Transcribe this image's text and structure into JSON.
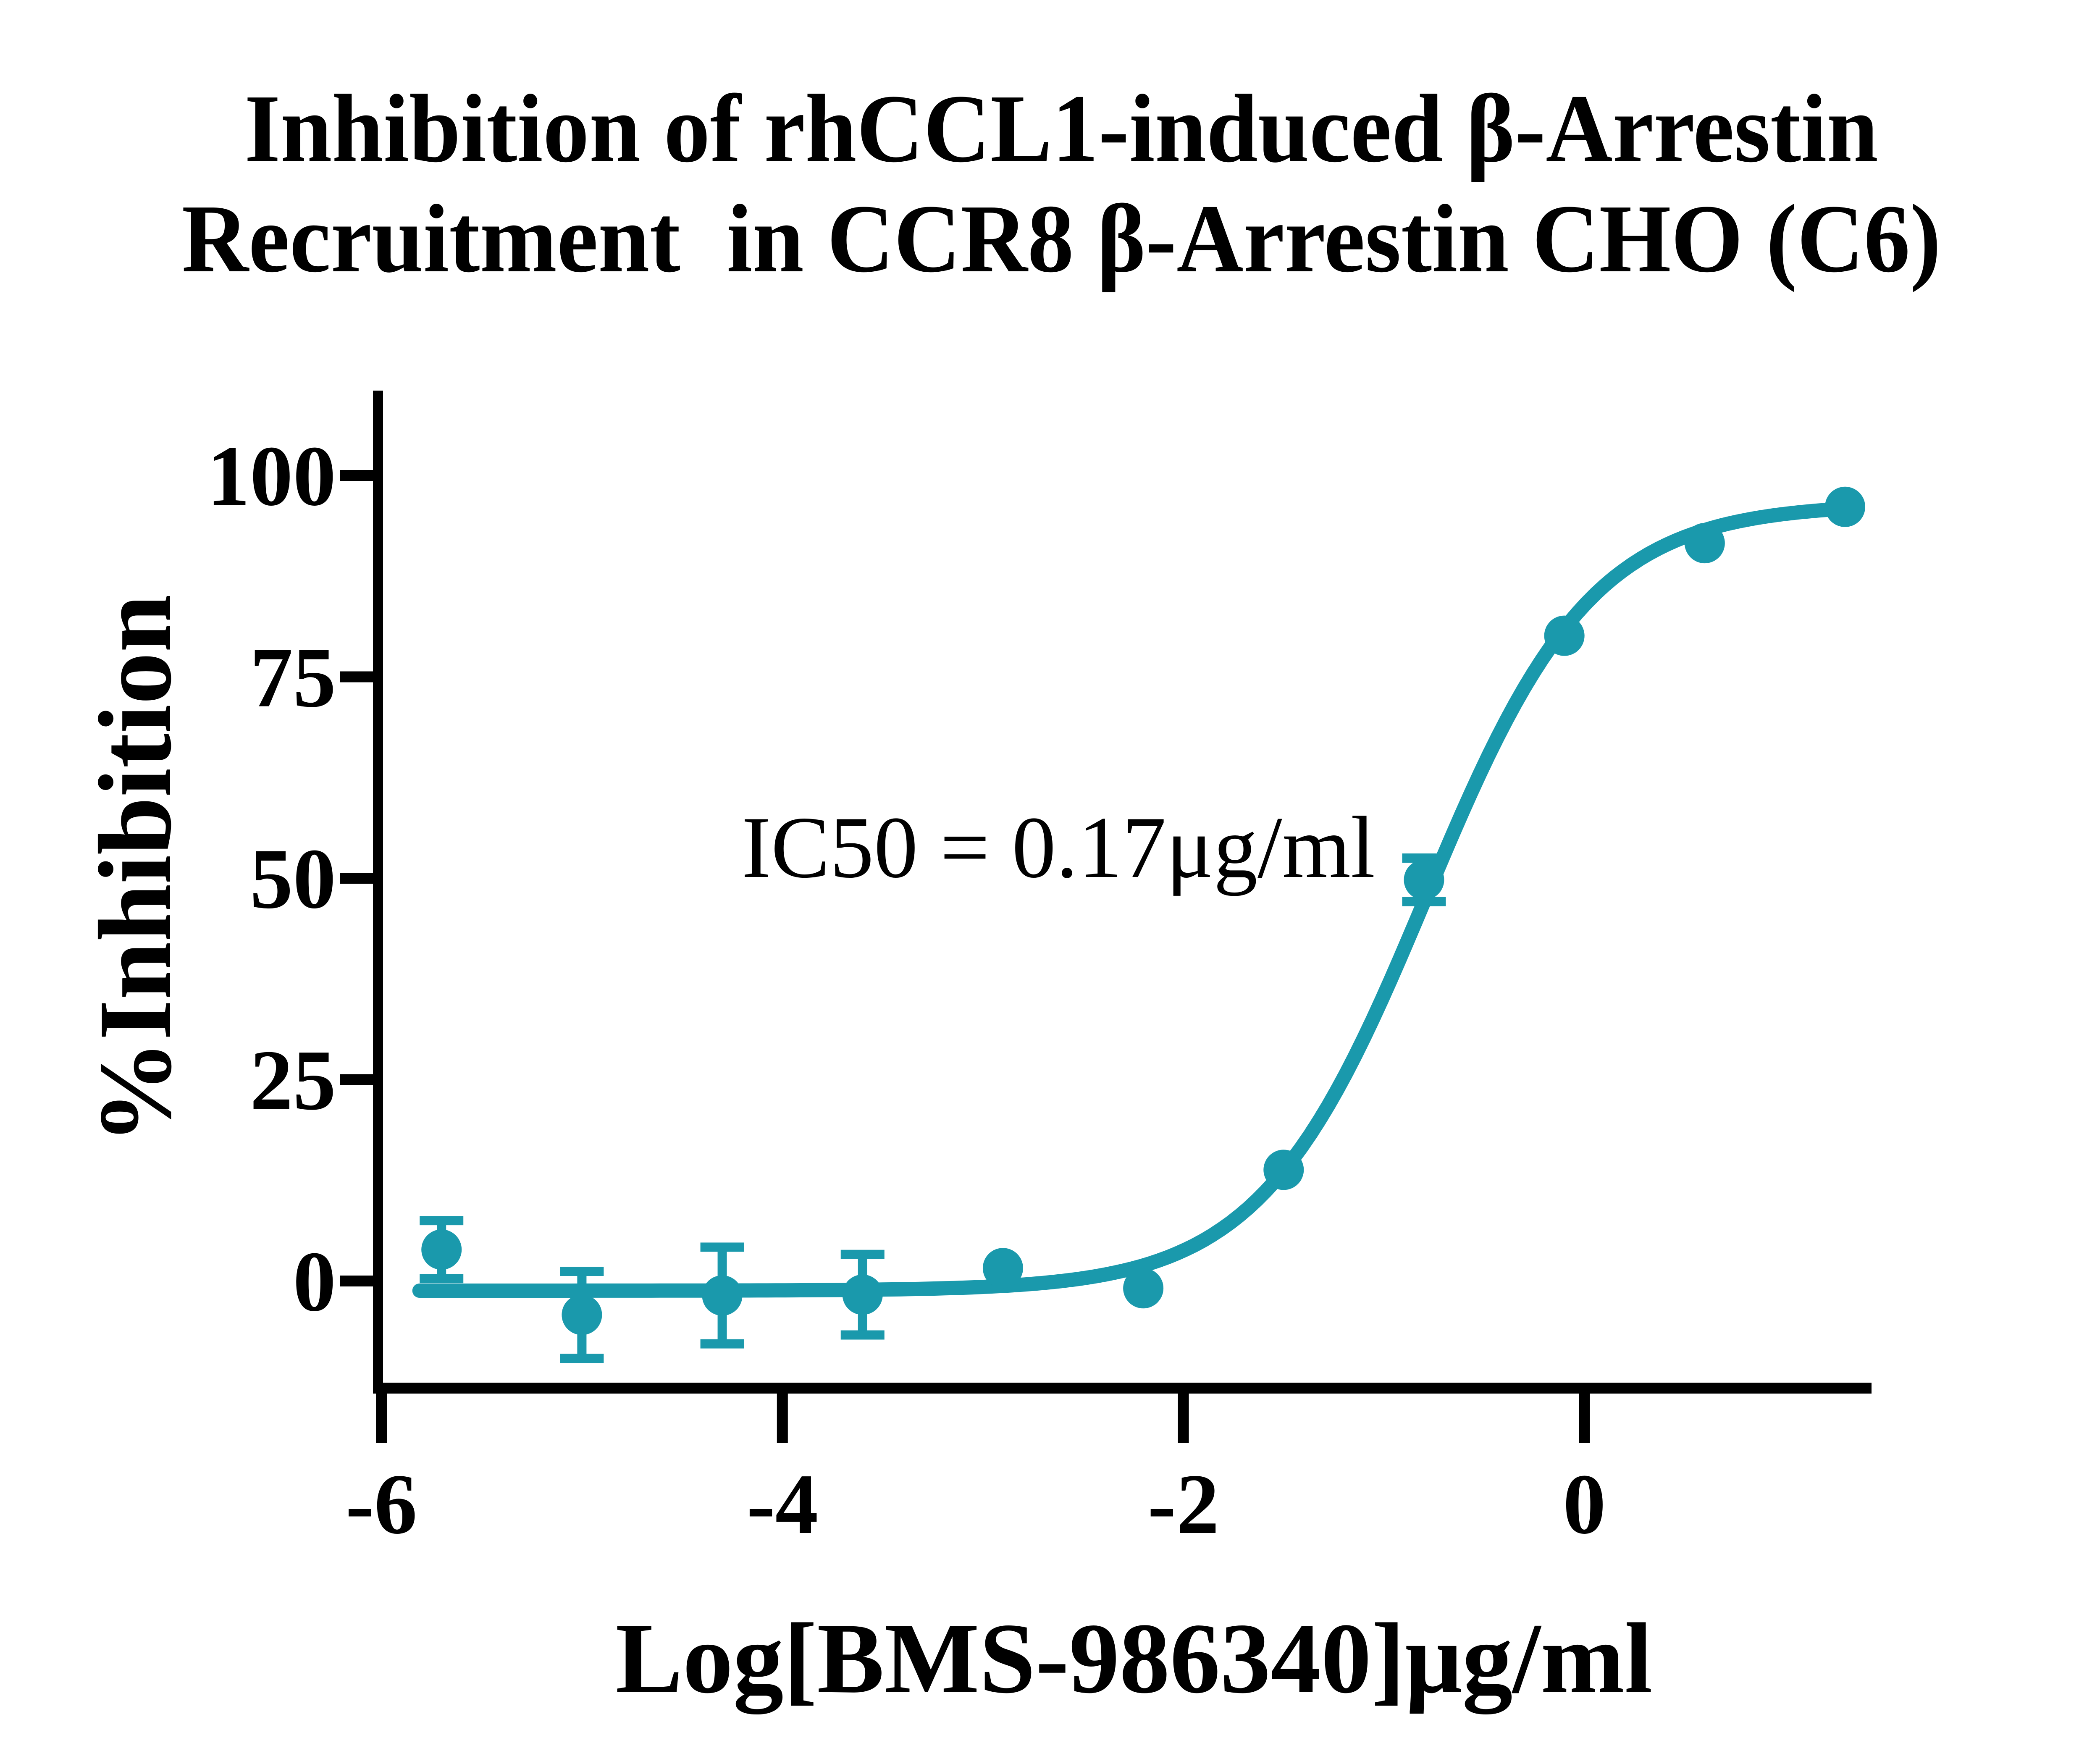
{
  "figure": {
    "title_line1": "Inhibition of rhCCL1-induced β-Arrestin",
    "title_line2": "Recruitment  in CCR8 β-Arrestin CHO (C6)",
    "y_axis_title": "%Inhibition",
    "x_axis_title": "Log[BMS-986340]μg/ml",
    "annotation": "IC50 = 0.17μg/ml"
  },
  "chart_data": {
    "type": "scatter",
    "title": "Inhibition of rhCCL1-induced β-Arrestin Recruitment in CCR8 β-Arrestin CHO (C6)",
    "xlabel": "Log[BMS-986340]μg/ml",
    "ylabel": "%Inhibition",
    "x_ticks": [
      -6,
      -4,
      -2,
      0
    ],
    "y_ticks": [
      0,
      25,
      50,
      75,
      100
    ],
    "xlim": [
      -6.04,
      1.43
    ],
    "ylim": [
      -14,
      110
    ],
    "grid": false,
    "legend": false,
    "ic50_label": "IC50 = 0.17μg/ml",
    "ic50_value_ug_ml": 0.17,
    "series": [
      {
        "name": "BMS-986340",
        "marker": "circle",
        "color": "#1A99AC",
        "points": [
          {
            "x": -5.7,
            "y": 3.9,
            "err": 3.6
          },
          {
            "x": -5.0,
            "y": -4.2,
            "err": 5.4
          },
          {
            "x": -4.3,
            "y": -1.8,
            "err": 6.0
          },
          {
            "x": -3.6,
            "y": -1.7,
            "err": 5.0
          },
          {
            "x": -2.9,
            "y": 1.6,
            "err": 0
          },
          {
            "x": -2.2,
            "y": -0.9,
            "err": 0
          },
          {
            "x": -1.5,
            "y": 13.8,
            "err": 0
          },
          {
            "x": -0.8,
            "y": 49.8,
            "err": 2.7
          },
          {
            "x": -0.1,
            "y": 80.1,
            "err": 0
          },
          {
            "x": 0.6,
            "y": 91.6,
            "err": 0
          },
          {
            "x": 1.3,
            "y": 96.1,
            "err": 0
          }
        ],
        "fit": {
          "model": "four_parameter_logistic",
          "bottom": -1.2,
          "top": 96.5,
          "logIC50": -0.79,
          "hill": 1.05,
          "x_start": -5.81,
          "x_end": 1.3
        }
      }
    ],
    "colors": {
      "curve": "#1A99AC",
      "axis": "#000000",
      "text": "#000000",
      "background": "#FFFFFF"
    }
  }
}
